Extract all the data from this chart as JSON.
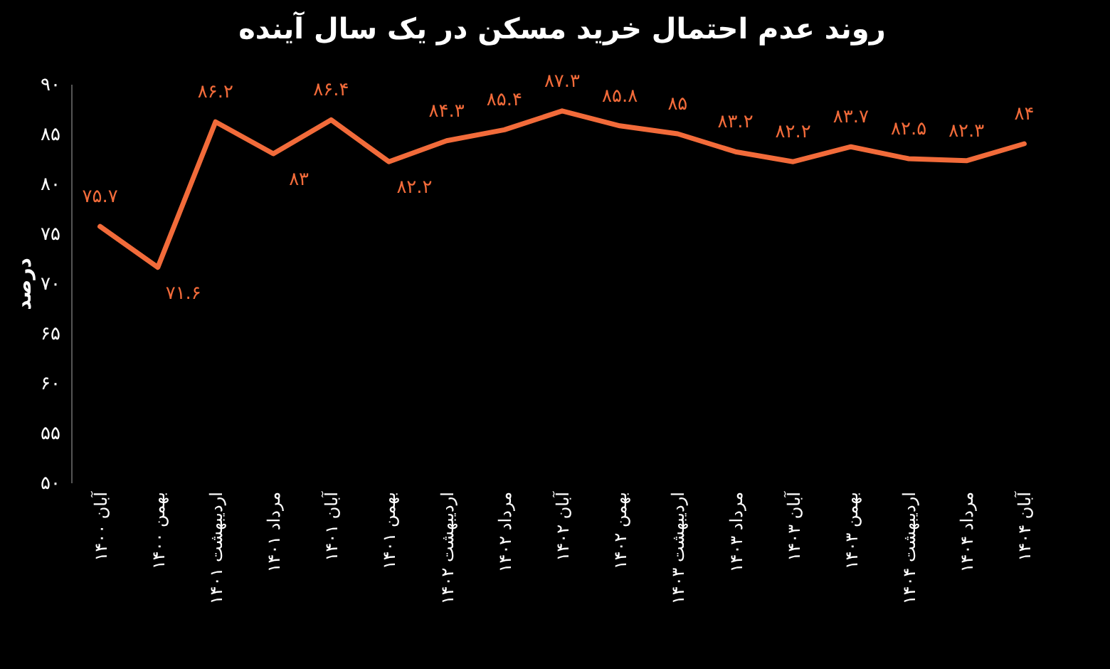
{
  "chart_data": {
    "type": "line",
    "title": "روند عدم احتمال خرید مسکن در یک سال آینده",
    "ylabel": "درصد",
    "categories": [
      "آبان ۱۴۰۰",
      "بهمن ۱۴۰۰",
      "اردیبهشت ۱۴۰۱",
      "مرداد ۱۴۰۱",
      "آبان ۱۴۰۱",
      "بهمن ۱۴۰۱",
      "اردیبهشت ۱۴۰۲",
      "مرداد ۱۴۰۲",
      "آبان ۱۴۰۲",
      "بهمن ۱۴۰۲",
      "اردیبهشت ۱۴۰۳",
      "مرداد ۱۴۰۳",
      "آبان ۱۴۰۳",
      "بهمن ۱۴۰۳",
      "اردیبهشت ۱۴۰۴",
      "مرداد ۱۴۰۴",
      "آبان ۱۴۰۴"
    ],
    "series": [
      {
        "color": "#f26b3a",
        "values": [
          75.7,
          71.6,
          86.2,
          83,
          86.4,
          82.2,
          84.3,
          85.4,
          87.3,
          85.8,
          85,
          83.2,
          82.2,
          83.7,
          82.5,
          82.3,
          84
        ],
        "value_labels": [
          "۷۵.۷",
          "۷۱.۶",
          "۸۶.۲",
          "۸۳",
          "۸۶.۴",
          "۸۲.۲",
          "۸۴.۳",
          "۸۵.۴",
          "۸۷.۳",
          "۸۵.۸",
          "۸۵",
          "۸۳.۲",
          "۸۲.۲",
          "۸۳.۷",
          "۸۲.۵",
          "۸۲.۳",
          "۸۴"
        ]
      }
    ],
    "ylim": [
      50,
      90
    ],
    "yticks": [
      {
        "value": 50,
        "label": "۵۰"
      },
      {
        "value": 55,
        "label": "۵۵"
      },
      {
        "value": 60,
        "label": "۶۰"
      },
      {
        "value": 65,
        "label": "۶۵"
      },
      {
        "value": 70,
        "label": "۷۰"
      },
      {
        "value": 75,
        "label": "۷۵"
      },
      {
        "value": 80,
        "label": "۸۰"
      },
      {
        "value": 85,
        "label": "۸۵"
      },
      {
        "value": 90,
        "label": "۹۰"
      }
    ],
    "grid": false
  }
}
